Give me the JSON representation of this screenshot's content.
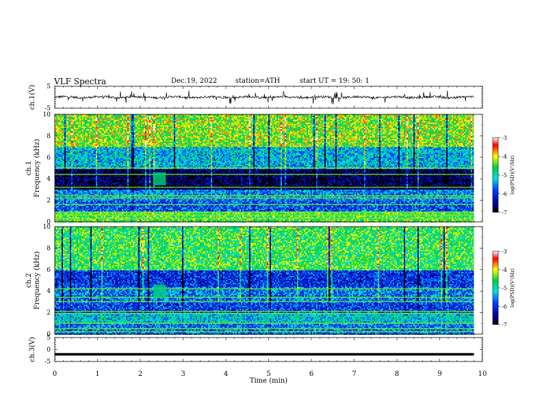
{
  "header": {
    "title": "VLF  Spectra",
    "date": "Dec.19, 2022",
    "station": "station=ATH",
    "start": "start  UT  =    19: 50: 1"
  },
  "chart_data": [
    {
      "type": "line",
      "name": "ch1-waveform",
      "ylabel": "ch.1(V)",
      "ylim": [
        -5,
        5
      ],
      "yticks": [
        "5",
        "-5"
      ],
      "xlim": [
        0,
        10
      ],
      "summary": {
        "baseline": 0,
        "typical_amplitude": 1,
        "spike_max": 3,
        "x_end": 9.8
      },
      "color": "#000000"
    },
    {
      "type": "heatmap",
      "name": "ch1-spectrogram",
      "ylabel_line1": "ch.1",
      "ylabel_line2": "Frequency (kHz)",
      "ylim": [
        0,
        10
      ],
      "yticks": [
        "0",
        "2",
        "4",
        "6",
        "8",
        "10"
      ],
      "xlim": [
        0,
        9.8
      ],
      "bands": [
        {
          "f_from": 0,
          "f_to": 1,
          "level": -4.5
        },
        {
          "f_from": 1,
          "f_to": 2,
          "level": -5.8
        },
        {
          "f_from": 2,
          "f_to": 3,
          "level": -5.5
        },
        {
          "f_from": 3,
          "f_to": 5,
          "level": -6.8
        },
        {
          "f_from": 5,
          "f_to": 7,
          "level": -5.3
        },
        {
          "f_from": 7,
          "f_to": 10,
          "level": -4.3
        }
      ],
      "colorbar": {
        "label": "log(PSD)(V²/Hz)",
        "min": -7,
        "max": -3,
        "ticks": [
          "-3",
          "-4",
          "-5",
          "-6",
          "-7"
        ]
      }
    },
    {
      "type": "heatmap",
      "name": "ch2-spectrogram",
      "ylabel_line1": "ch.2",
      "ylabel_line2": "Frequency (kHz)",
      "ylim": [
        0,
        10
      ],
      "yticks": [
        "0",
        "2",
        "4",
        "6",
        "8",
        "10"
      ],
      "xlim": [
        0,
        9.8
      ],
      "bands": [
        {
          "f_from": 0,
          "f_to": 1,
          "level": -5.6
        },
        {
          "f_from": 1,
          "f_to": 2,
          "level": -5.2
        },
        {
          "f_from": 2,
          "f_to": 3,
          "level": -5.9
        },
        {
          "f_from": 3,
          "f_to": 4.5,
          "level": -5.6
        },
        {
          "f_from": 4.5,
          "f_to": 6,
          "level": -6.0
        },
        {
          "f_from": 6,
          "f_to": 10,
          "level": -4.6
        }
      ],
      "colorbar": {
        "label": "log(PSD)(V²/Hz)",
        "min": -7,
        "max": -3,
        "ticks": [
          "-3",
          "-4",
          "-5",
          "-6",
          "-7"
        ]
      }
    },
    {
      "type": "line",
      "name": "ch3-waveform",
      "ylabel": "ch.3(V)",
      "ylim": [
        -5,
        5
      ],
      "yticks": [
        "5",
        "0",
        "-5"
      ],
      "xlim": [
        0,
        10
      ],
      "summary": {
        "baseline": -2,
        "x_end": 9.8
      },
      "color": "#000000"
    }
  ],
  "xaxis": {
    "label": "Time  (min)",
    "range": [
      0,
      10
    ],
    "ticks": [
      "0",
      "1",
      "2",
      "3",
      "4",
      "5",
      "6",
      "7",
      "8",
      "9",
      "10"
    ]
  },
  "colors": {
    "text": "#000000",
    "axes": "#000000"
  }
}
